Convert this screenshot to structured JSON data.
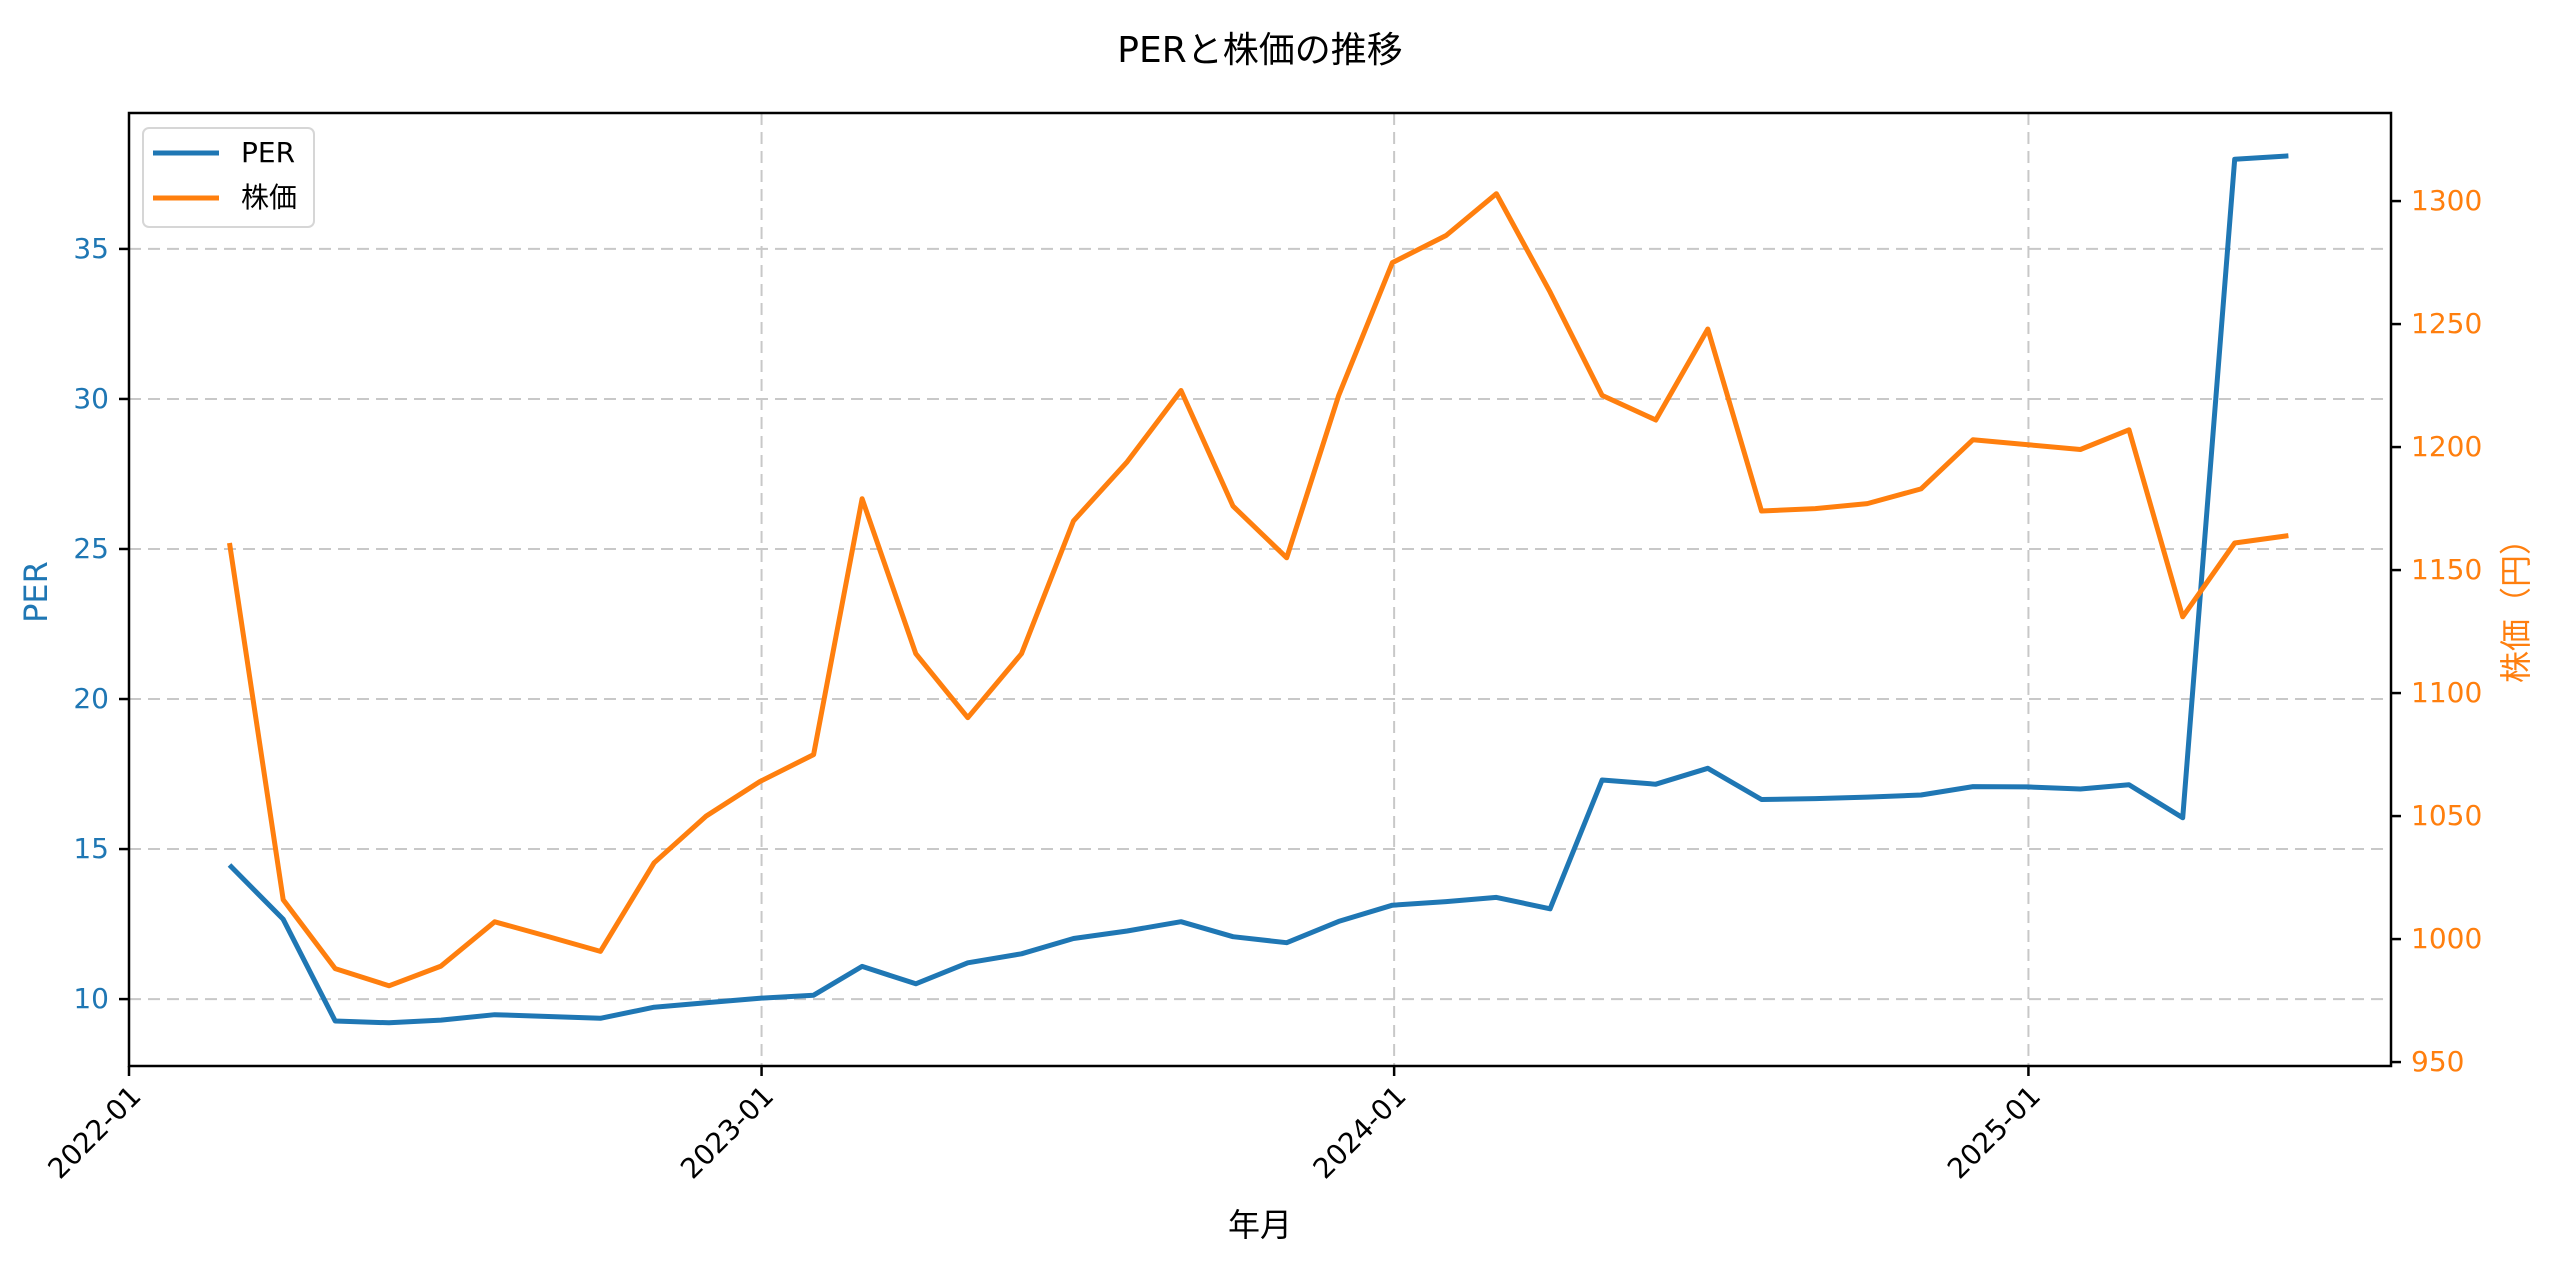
{
  "figure": {
    "title": "PERと株価の推移",
    "xlabel": "年月",
    "ylabel_left": "PER",
    "ylabel_right": "株価（円）",
    "colors": {
      "per": "#1f77b4",
      "price": "#ff7f0e",
      "grid": "#c8c8c8",
      "axis": "#000000"
    },
    "legend": [
      {
        "label": "PER",
        "color": "#1f77b4"
      },
      {
        "label": "株価",
        "color": "#ff7f0e"
      }
    ],
    "x_ticks": [
      "2022-01",
      "2023-01",
      "2024-01",
      "2025-01"
    ],
    "y_left_ticks": [
      10,
      15,
      20,
      25,
      30,
      35
    ],
    "y_right_ticks": [
      950,
      1000,
      1050,
      1100,
      1150,
      1200,
      1250,
      1300
    ]
  },
  "chart_data": {
    "type": "line",
    "title": "PERと株価の推移",
    "xlabel": "年月",
    "ylabel": "PER",
    "ylabel_secondary": "株価（円）",
    "x": [
      "2022-02",
      "2022-03",
      "2022-04",
      "2022-05",
      "2022-06",
      "2022-07",
      "2022-08",
      "2022-09",
      "2022-10",
      "2022-11",
      "2022-12",
      "2023-01",
      "2023-02",
      "2023-03",
      "2023-04",
      "2023-05",
      "2023-06",
      "2023-07",
      "2023-08",
      "2023-09",
      "2023-10",
      "2023-11",
      "2023-12",
      "2024-01",
      "2024-02",
      "2024-03",
      "2024-04",
      "2024-05",
      "2024-06",
      "2024-07",
      "2024-08",
      "2024-09",
      "2024-10",
      "2024-11",
      "2024-12",
      "2025-01",
      "2025-02",
      "2025-03",
      "2025-04",
      "2025-05"
    ],
    "series": [
      {
        "name": "PER",
        "axis": "left",
        "color": "#1f77b4",
        "values": [
          14.47,
          12.66,
          9.27,
          9.21,
          9.3,
          9.48,
          9.42,
          9.36,
          9.73,
          9.88,
          10.03,
          10.13,
          11.09,
          10.51,
          11.21,
          11.51,
          12.02,
          12.27,
          12.58,
          12.08,
          11.88,
          12.59,
          13.13,
          13.25,
          13.39,
          13.01,
          17.3,
          17.16,
          17.69,
          16.65,
          16.68,
          16.73,
          16.8,
          17.08,
          17.07,
          17.0,
          17.14,
          16.04,
          37.99,
          38.1
        ]
      },
      {
        "name": "株価",
        "axis": "right",
        "color": "#ff7f0e",
        "values": [
          1161,
          1016,
          988,
          981,
          989,
          1007,
          1001,
          995,
          1031,
          1050,
          1064,
          1075,
          1179,
          1116,
          1090,
          1116,
          1170,
          1194,
          1223,
          1176,
          1155,
          1221,
          1275,
          1286,
          1303,
          1263,
          1221,
          1211,
          1248,
          1174,
          1175,
          1177,
          1183,
          1203,
          1201,
          1199,
          1207,
          1131,
          1161,
          1164
        ]
      }
    ],
    "xlim": [
      "2022-01-01",
      "2025-06-30"
    ],
    "ylim": [
      7.77,
      39.53
    ],
    "ylim_secondary": [
      948.4,
      1335.8
    ],
    "x_ticks": [
      "2022-01",
      "2023-01",
      "2024-01",
      "2025-01"
    ],
    "grid": true,
    "legend_position": "upper left"
  }
}
